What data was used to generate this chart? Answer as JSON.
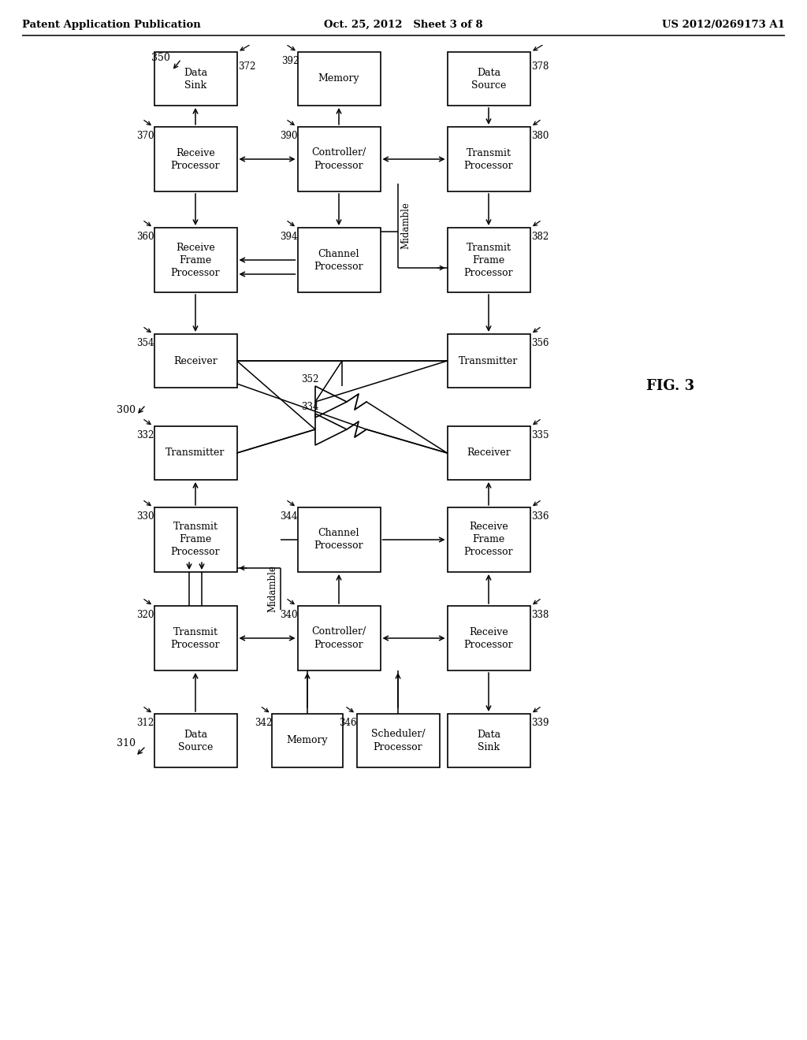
{
  "header_left": "Patent Application Publication",
  "header_mid": "Oct. 25, 2012   Sheet 3 of 8",
  "header_right": "US 2012/0269173 A1",
  "fig_label": "FIG. 3",
  "bg_color": "#ffffff",
  "box_color": "#ffffff",
  "box_edge": "#000000",
  "text_color": "#000000"
}
